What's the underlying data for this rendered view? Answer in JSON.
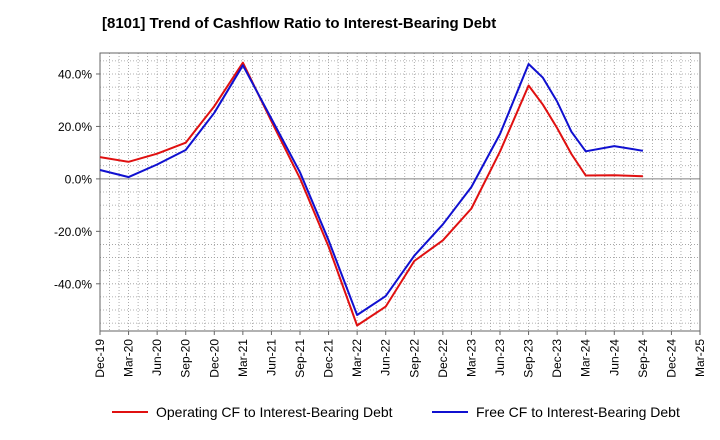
{
  "chart_data": {
    "type": "line",
    "title": "[8101]  Trend of Cashflow Ratio to Interest-Bearing Debt",
    "xlabel": "",
    "ylabel": "",
    "x": [
      "Dec-19",
      "Mar-20",
      "Jun-20",
      "Sep-20",
      "Dec-20",
      "Mar-21",
      "Jun-21",
      "Sep-21",
      "Dec-21",
      "Mar-22",
      "Jun-22",
      "Sep-22",
      "Dec-22",
      "Mar-23",
      "Jun-23",
      "Sep-23",
      "Dec-23",
      "Mar-24",
      "Jun-24",
      "Sep-24",
      "Dec-24",
      "Mar-25"
    ],
    "ylim": [
      -58,
      48
    ],
    "yticks": [
      40,
      20,
      0,
      -20,
      -40
    ],
    "ytick_labels": [
      "40.0%",
      "20.0%",
      "0.0%",
      "-20.0%",
      "-40.0%"
    ],
    "grid": true,
    "legend_position": "bottom",
    "series": [
      {
        "name": "Operating CF to Interest-Bearing Debt",
        "color": "#e01010",
        "x_index": [
          0,
          1,
          2,
          3,
          4,
          5,
          6,
          7,
          8,
          9,
          10,
          11,
          12,
          13,
          14,
          15,
          15.5,
          16,
          16.5,
          17,
          18,
          19
        ],
        "values": [
          8.3,
          6.5,
          9.6,
          13.8,
          27.7,
          44.3,
          22.0,
          0.2,
          -25.8,
          -55.9,
          -48.7,
          -31.3,
          -23.4,
          -11.3,
          10.4,
          35.6,
          28.3,
          19.4,
          9.5,
          1.3,
          1.4,
          1.0
        ]
      },
      {
        "name": "Free CF to Interest-Bearing Debt",
        "color": "#1010d0",
        "x_index": [
          0,
          1,
          2,
          3,
          4,
          5,
          6,
          7,
          8,
          9,
          10,
          11,
          12,
          13,
          14,
          15,
          15.5,
          16,
          16.5,
          17,
          18,
          19
        ],
        "values": [
          3.4,
          0.7,
          5.5,
          11.0,
          25.2,
          43.3,
          23.0,
          2.5,
          -23.4,
          -51.9,
          -44.7,
          -29.3,
          -17.3,
          -3.1,
          17.1,
          43.8,
          38.6,
          29.5,
          18.0,
          10.5,
          12.5,
          10.7
        ]
      }
    ]
  }
}
